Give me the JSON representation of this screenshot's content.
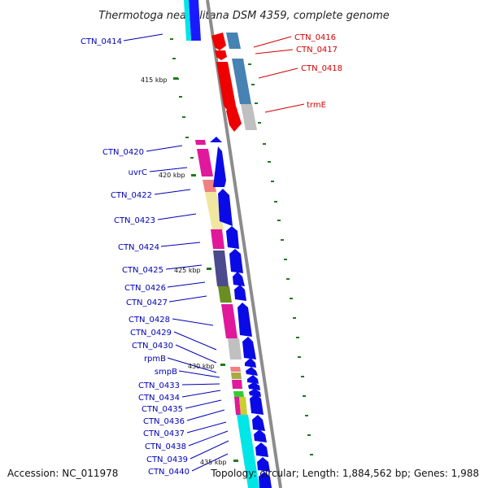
{
  "header": {
    "title": "Thermotoga neapolitana DSM 4359, complete genome"
  },
  "footer": {
    "accession": "Accession: NC_011978",
    "summary": "Topology: circular; Length: 1,884,562 bp; Genes: 1,988"
  },
  "colors": {
    "backbone": "#8c8c8c",
    "forward_gene": "#0a0ae6",
    "reverse_gene": "#ee0000",
    "label_blue": "#0000b4",
    "label_red": "#d40000",
    "gc_skew_tick": "#1f7a1f"
  },
  "position_labels": [
    "415 kbp",
    "420 kbp",
    "425 kbp",
    "430 kbp",
    "435 kbp"
  ],
  "right_gene_labels": [
    "CTN_0416",
    "CTN_0417",
    "CTN_0418",
    "trmE"
  ],
  "left_gene_labels": [
    "CTN_0414",
    "CTN_0420",
    "uvrC",
    "CTN_0422",
    "CTN_0423",
    "CTN_0424",
    "CTN_0425",
    "CTN_0426",
    "CTN_0427",
    "CTN_0428",
    "CTN_0429",
    "CTN_0430",
    "rpmB",
    "smpB",
    "CTN_0433",
    "CTN_0434",
    "CTN_0435",
    "CTN_0436",
    "CTN_0437",
    "CTN_0438",
    "CTN_0439",
    "CTN_0440"
  ]
}
